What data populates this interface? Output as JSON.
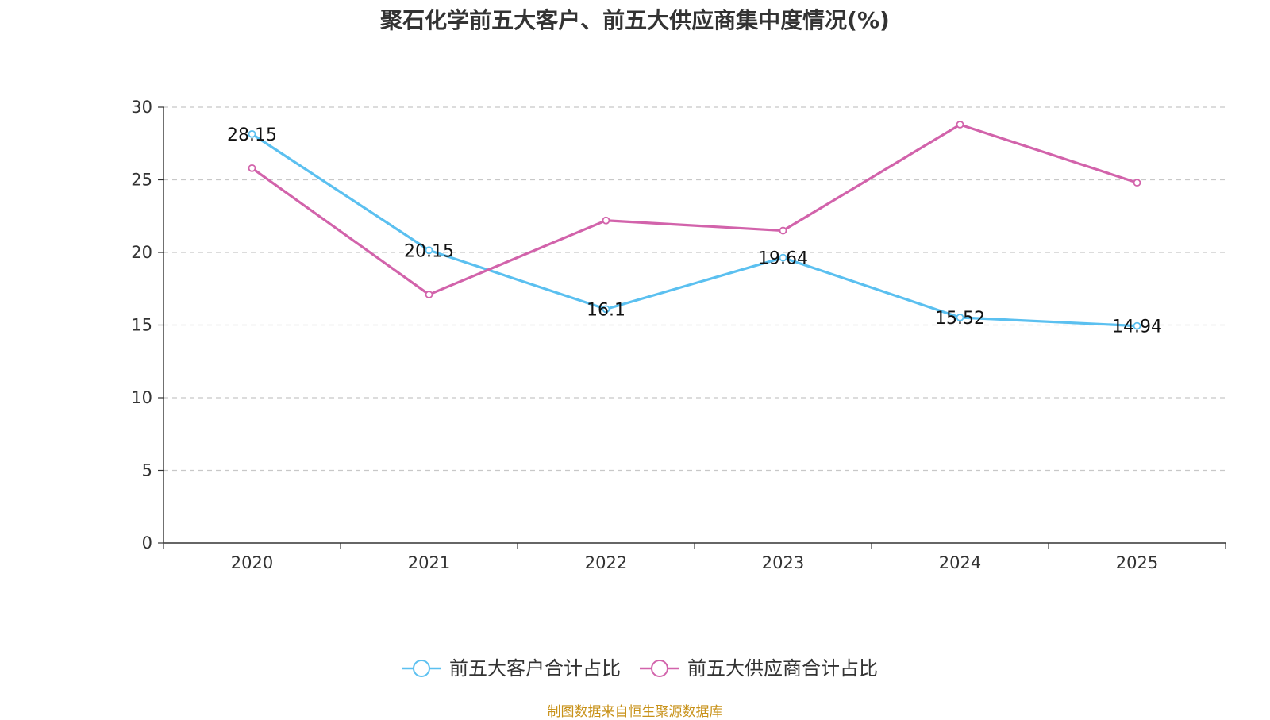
{
  "chart_data": {
    "type": "line",
    "title": "聚石化学前五大客户、前五大供应商集中度情况(%)",
    "categories": [
      "2020",
      "2021",
      "2022",
      "2023",
      "2024",
      "2025"
    ],
    "ylim": [
      0,
      30
    ],
    "yticks": [
      0,
      5,
      10,
      15,
      20,
      25,
      30
    ],
    "grid": true,
    "legend_position": "bottom-center",
    "series": [
      {
        "name": "前五大客户合计占比",
        "color": "#5bc0f0",
        "values": [
          28.15,
          20.15,
          16.1,
          19.64,
          15.52,
          14.94
        ],
        "labels": [
          "28.15",
          "20.15",
          "16.1",
          "19.64",
          "15.52",
          "14.94"
        ]
      },
      {
        "name": "前五大供应商合计占比",
        "color": "#d263ab",
        "values": [
          25.8,
          17.1,
          22.2,
          21.5,
          28.8,
          24.8
        ],
        "labels": [
          "",
          "",
          "",
          "",
          "",
          ""
        ]
      }
    ]
  },
  "source": {
    "text": "制图数据来自恒生聚源数据库",
    "color": "#c8921a"
  }
}
